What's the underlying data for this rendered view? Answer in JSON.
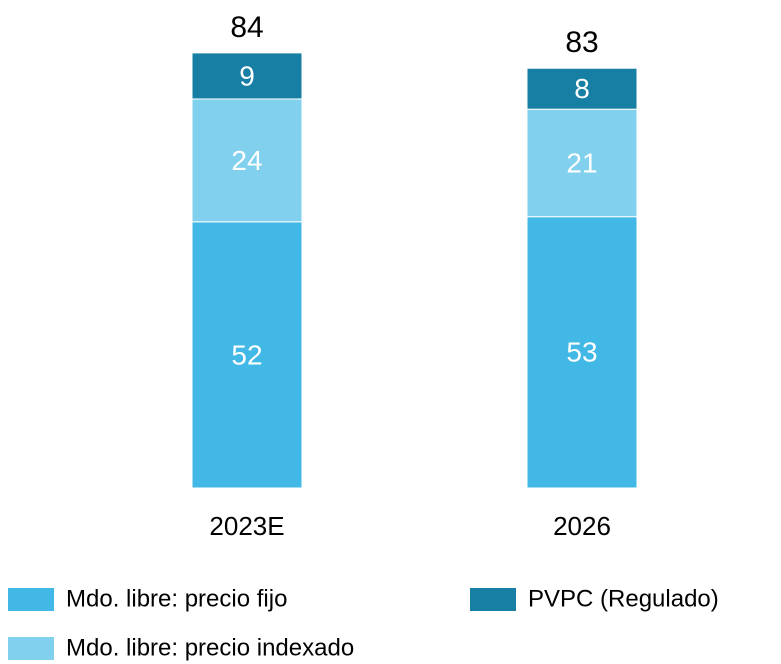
{
  "chart_data": {
    "type": "stacked_bar",
    "categories": [
      "2023E",
      "2026"
    ],
    "series": [
      {
        "name": "Mdo. libre: precio fijo",
        "color": "#41b8e6",
        "values": [
          52,
          53
        ]
      },
      {
        "name": "Mdo. libre: precio indexado",
        "color": "#80d0ee",
        "values": [
          24,
          21
        ]
      },
      {
        "name": "PVPC (Regulado)",
        "color": "#167fa3",
        "values": [
          9,
          8
        ]
      }
    ],
    "totals": [
      84,
      83
    ],
    "ylim": [
      0,
      84
    ],
    "legend": "bottom"
  }
}
